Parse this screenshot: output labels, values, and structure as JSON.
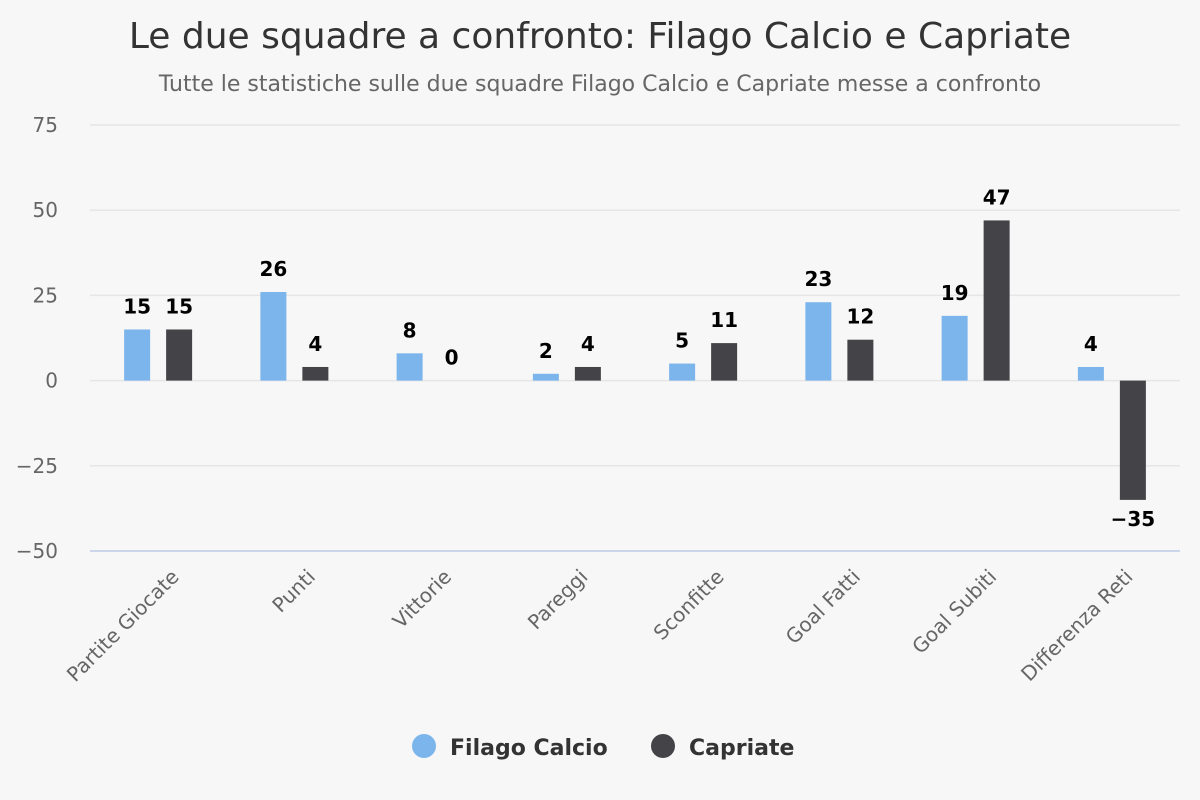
{
  "chart_data": {
    "type": "bar",
    "title": "Le due squadre a confronto: Filago Calcio e Capriate",
    "subtitle": "Tutte le statistiche sulle due squadre Filago Calcio e Capriate messe a confronto",
    "categories": [
      "Partite Giocate",
      "Punti",
      "Vittorie",
      "Pareggi",
      "Sconfitte",
      "Goal Fatti",
      "Goal Subiti",
      "Differenza Reti"
    ],
    "series": [
      {
        "name": "Filago Calcio",
        "color": "#7cb5ec",
        "values": [
          15,
          26,
          8,
          2,
          5,
          23,
          19,
          4
        ]
      },
      {
        "name": "Capriate",
        "color": "#434348",
        "values": [
          15,
          4,
          0,
          4,
          11,
          12,
          47,
          -35
        ]
      }
    ],
    "ylim": [
      -50,
      75
    ],
    "yticks": [
      75,
      50,
      25,
      0,
      -25,
      -50
    ],
    "ytick_labels": [
      "75",
      "50",
      "25",
      "0",
      "−25",
      "−50"
    ],
    "xlabel": "",
    "ylabel": "",
    "legend_position": "bottom-center",
    "grid": true
  }
}
